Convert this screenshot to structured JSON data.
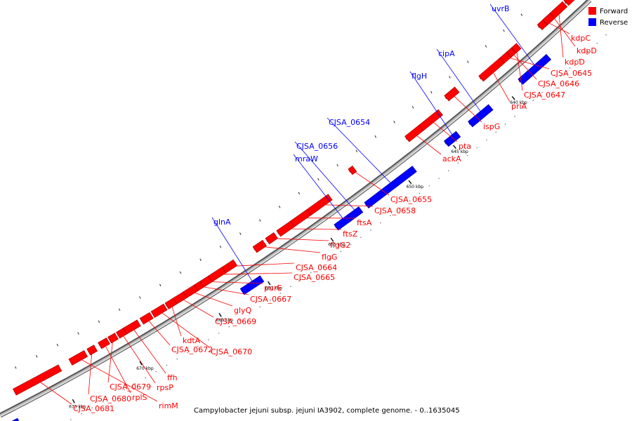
{
  "caption": "Campylobacter jejuni subsp. jejuni IA3902, complete genome. - 0..1635045",
  "legend": [
    {
      "label": "Forward",
      "color": "#ff0000"
    },
    {
      "label": "Reverse",
      "color": "#0000ff"
    }
  ],
  "colors": {
    "forward": "#ff0000",
    "reverse": "#0000ff",
    "backbone": "#8c8c8c"
  },
  "kbp_labels": [
    "640 kbp",
    "645 kbp",
    "650 kbp",
    "655 kbp",
    "660 kbp",
    "665 kbp",
    "670 kbp",
    "675 kbp"
  ],
  "genes_forward": [
    "kdpC",
    "kdpD",
    "kdpD",
    "CJSA_0645",
    "CJSA_0646",
    "CJSA_0647",
    "priA",
    "ispG",
    "pta",
    "ackA",
    "CJSA_0655",
    "CJSA_0658",
    "ftsA",
    "ftsZ",
    "flgG2",
    "flgG",
    "CJSA_0664",
    "CJSA_0665",
    "purE",
    "CJSA_0667",
    "glyQ",
    "CJSA_0669",
    "kdtA",
    "CJSA_0670",
    "CJSA_0672",
    "ffh",
    "rpsP",
    "CJSA_0679",
    "rplS",
    "CJSA_0680",
    "rimM",
    "CJSA_0681"
  ],
  "genes_reverse": [
    "uvrB",
    "cipA",
    "flgH",
    "CJSA_0654",
    "CJSA_0656",
    "mraW",
    "glnA"
  ]
}
